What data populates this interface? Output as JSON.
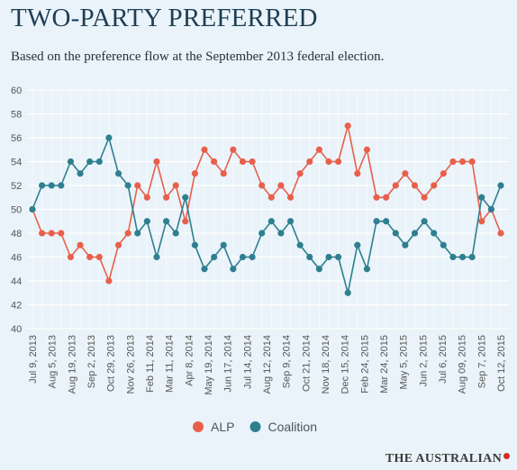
{
  "header": {
    "title": "TWO-PARTY PREFERRED",
    "subtitle": "Based on the preference flow at the September 2013 federal election."
  },
  "brand": {
    "name": "THE AUSTRALIAN"
  },
  "colors": {
    "background": "#e9f3f9",
    "grid": "#ffffff",
    "tick_text": "#555555",
    "alp": "#e8604c",
    "coalition": "#2e7f90"
  },
  "chart_data": {
    "type": "line",
    "title": "TWO-PARTY PREFERRED",
    "subtitle": "Based on the preference flow at the September 2013 federal election.",
    "xlabel": "",
    "ylabel": "",
    "ylim": [
      40,
      60
    ],
    "yticks": [
      40,
      42,
      44,
      46,
      48,
      50,
      52,
      54,
      56,
      58,
      60
    ],
    "grid": true,
    "legend": "bottom-center",
    "x_tick_labels": [
      "Jul 9, 2013",
      "Aug 5, 2013",
      "Aug 19, 2013",
      "Sep 2, 2013",
      "Oct 29, 2013",
      "Nov 26, 2013",
      "Feb 11, 2014",
      "Mar 11, 2014",
      "Apr 8, 2014",
      "May 19, 2014",
      "Jun 17, 2014",
      "Jul 14, 2014",
      "Aug 12, 2014",
      "Sep 9, 2014",
      "Oct 21, 2014",
      "Nov 18, 2014",
      "Dec 15, 2014",
      "Feb 24, 2015",
      "Mar 24, 2015",
      "May 5, 2015",
      "Jun 2, 2015",
      "Jul 6, 2015",
      "Aug 09, 2015",
      "Sep 7, 2015",
      "Oct 12, 2015"
    ],
    "series": [
      {
        "name": "ALP",
        "color": "#e8604c",
        "values": [
          50,
          48,
          48,
          48,
          46,
          47,
          46,
          46,
          44,
          47,
          48,
          52,
          51,
          54,
          51,
          52,
          49,
          53,
          55,
          54,
          53,
          55,
          54,
          54,
          52,
          51,
          52,
          51,
          53,
          54,
          55,
          54,
          54,
          57,
          53,
          55,
          51,
          51,
          52,
          53,
          52,
          51,
          52,
          53,
          54,
          54,
          54,
          49,
          50,
          48
        ]
      },
      {
        "name": "Coalition",
        "color": "#2e7f90",
        "values": [
          50,
          52,
          52,
          52,
          54,
          53,
          54,
          54,
          56,
          53,
          52,
          48,
          49,
          46,
          49,
          48,
          51,
          47,
          45,
          46,
          47,
          45,
          46,
          46,
          48,
          49,
          48,
          49,
          47,
          46,
          45,
          46,
          46,
          43,
          47,
          45,
          49,
          49,
          48,
          47,
          48,
          49,
          48,
          47,
          46,
          46,
          46,
          51,
          50,
          52
        ]
      }
    ]
  }
}
